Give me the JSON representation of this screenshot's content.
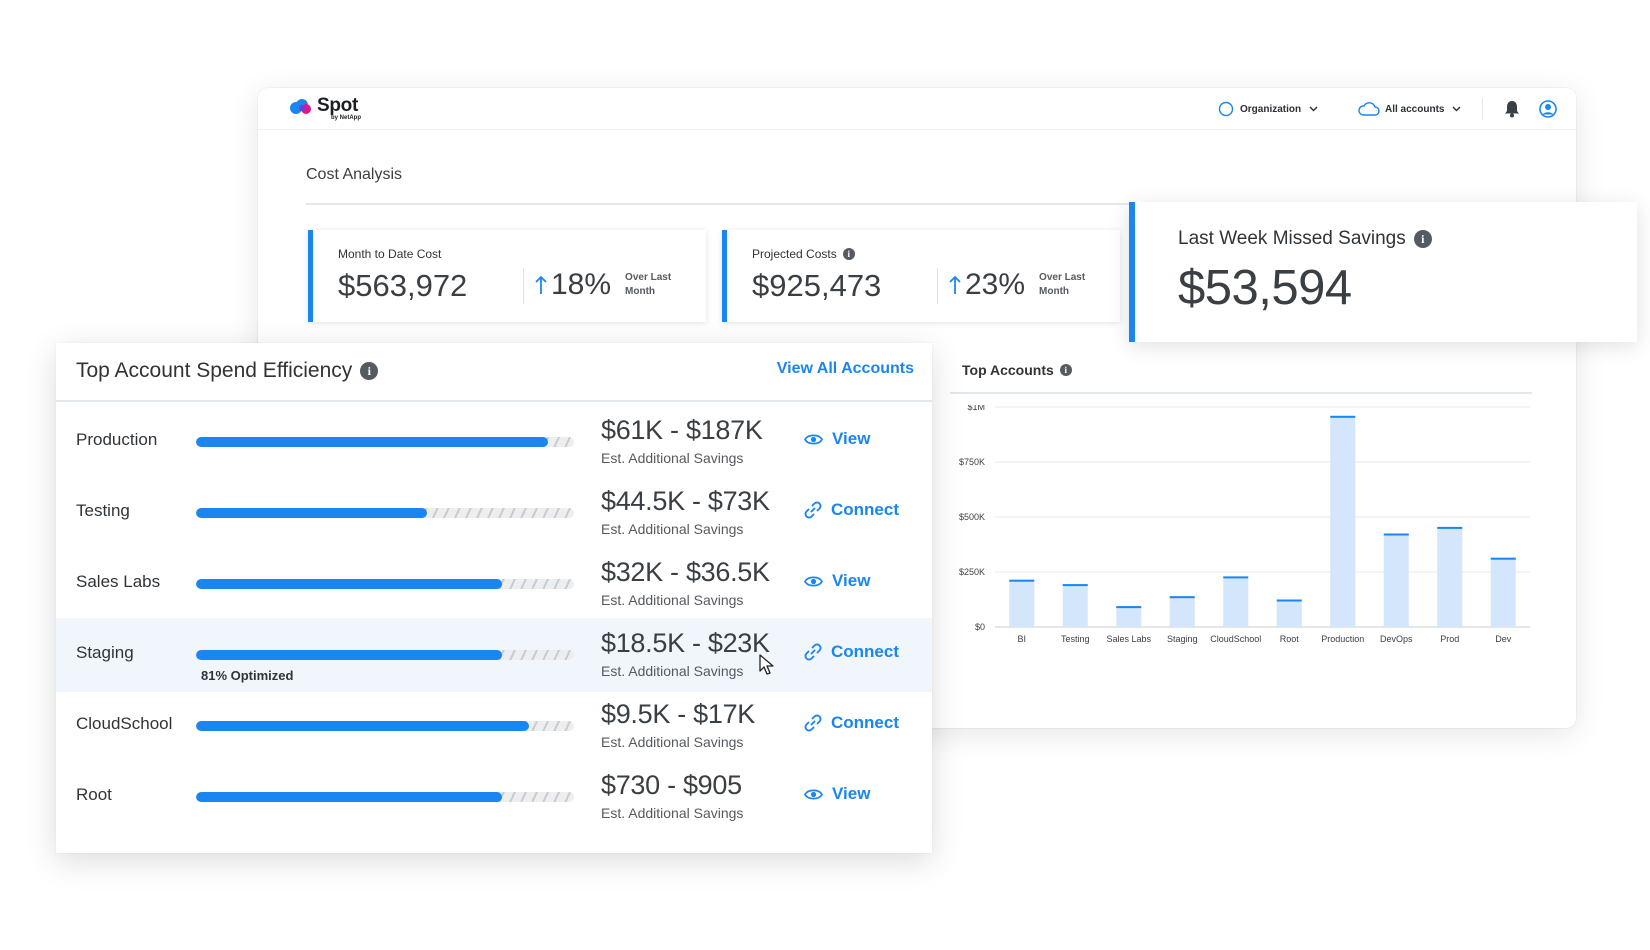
{
  "app": {
    "logo": {
      "name": "Spot",
      "sub": "by NetApp"
    },
    "nav": {
      "organization": "Organization",
      "accounts": "All accounts"
    }
  },
  "cost_analysis": {
    "title": "Cost Analysis",
    "metrics": [
      {
        "label": "Month to Date Cost",
        "value": "$563,972",
        "change": "18%",
        "note": "Over Last Month"
      },
      {
        "label": "Projected Costs",
        "value": "$925,473",
        "change": "23%",
        "note": "Over Last Month"
      }
    ],
    "missed": {
      "label": "Last Week Missed Savings",
      "value": "$53,594"
    }
  },
  "top_accounts": {
    "title": "Top Accounts",
    "chart_data": {
      "type": "bar",
      "categories": [
        "BI",
        "Testing",
        "Sales Labs",
        "Staging",
        "CloudSchool",
        "Root",
        "Production",
        "DevOps",
        "Prod",
        "Dev"
      ],
      "values": [
        215000,
        195000,
        95000,
        140000,
        230000,
        125000,
        960000,
        425000,
        455000,
        315000
      ],
      "ylim": [
        0,
        1000000
      ],
      "yticks": [
        0,
        250000,
        500000,
        750000,
        1000000
      ],
      "ytick_labels": [
        "$0",
        "$250K",
        "$500K",
        "$750K",
        "$1M"
      ],
      "grid": true
    }
  },
  "efficiency": {
    "title": "Top Account Spend Efficiency",
    "view_all": "View All Accounts",
    "rows": [
      {
        "name": "Production",
        "optimized": 0.93,
        "range": "$61K - $187K",
        "sub": "Est. Additional Savings",
        "action": "View",
        "action_icon": "eye-icon",
        "highlight": false,
        "caption": ""
      },
      {
        "name": "Testing",
        "optimized": 0.61,
        "range": "$44.5K - $73K",
        "sub": "Est. Additional Savings",
        "action": "Connect",
        "action_icon": "link-icon",
        "highlight": false,
        "caption": ""
      },
      {
        "name": "Sales Labs",
        "optimized": 0.81,
        "range": "$32K - $36.5K",
        "sub": "Est. Additional Savings",
        "action": "View",
        "action_icon": "eye-icon",
        "highlight": false,
        "caption": ""
      },
      {
        "name": "Staging",
        "optimized": 0.81,
        "range": "$18.5K - $23K",
        "sub": "Est. Additional Savings",
        "action": "Connect",
        "action_icon": "link-icon",
        "highlight": true,
        "caption": "81% Optimized"
      },
      {
        "name": "CloudSchool",
        "optimized": 0.88,
        "range": "$9.5K - $17K",
        "sub": "Est. Additional Savings",
        "action": "Connect",
        "action_icon": "link-icon",
        "highlight": false,
        "caption": ""
      },
      {
        "name": "Root",
        "optimized": 0.81,
        "range": "$730 - $905",
        "sub": "Est. Additional Savings",
        "action": "View",
        "action_icon": "eye-icon",
        "highlight": false,
        "caption": ""
      }
    ]
  },
  "colors": {
    "accent": "#1a86ef",
    "bar_fill": "#d3e6fb",
    "bar_top": "#1a86ef",
    "highlight_row": "#f1f6fd"
  }
}
